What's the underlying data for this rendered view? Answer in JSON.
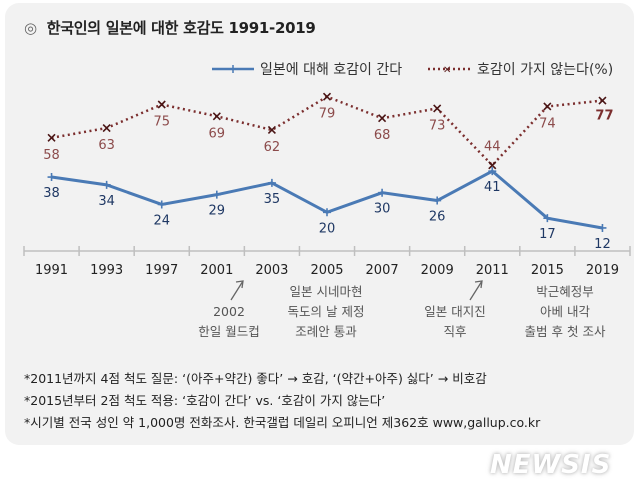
{
  "title": {
    "marker": "◎",
    "text": "한국인의 일본에 대한 호감도 1991-2019"
  },
  "chart_data": {
    "type": "line",
    "title": "한국인의 일본에 대한 호감도 1991-2019",
    "categories": [
      "1991",
      "1993",
      "1997",
      "2001",
      "2003",
      "2005",
      "2007",
      "2009",
      "2011",
      "2015",
      "2019"
    ],
    "series": [
      {
        "name": "일본에 대해 호감이 간다",
        "color": "#4a7ab5",
        "style": "solid",
        "marker": "plus",
        "values": [
          38,
          34,
          24,
          29,
          35,
          20,
          30,
          26,
          41,
          17,
          12
        ]
      },
      {
        "name": "호감이 가지 않는다(%)",
        "color": "#7b2e2e",
        "style": "dotted",
        "marker": "x",
        "values": [
          58,
          63,
          75,
          69,
          62,
          79,
          68,
          73,
          44,
          74,
          77
        ]
      }
    ],
    "xlabel": "",
    "ylabel": "",
    "ylim": [
      0,
      100
    ],
    "grid": false,
    "legend": "top-right",
    "unit": "%"
  },
  "annotations": [
    {
      "id": "a2002",
      "lines": [
        "2002",
        "한일 월드컵"
      ]
    },
    {
      "id": "a2005",
      "lines": [
        "일본 시네마현",
        "독도의 날 제정",
        "조례안 통과"
      ]
    },
    {
      "id": "a2011",
      "lines": [
        "일본 대지진",
        "직후"
      ]
    },
    {
      "id": "a2015",
      "lines": [
        "박근혜정부",
        "아베 내각",
        "출범 후 첫 조사"
      ]
    }
  ],
  "notes": [
    "*2011년까지 4점 척도 질문: ‘(아주+약간) 좋다’ → 호감, ‘(약간+아주) 싫다’ → 비호감",
    "*2015년부터 2점 척도 적용: ‘호감이 간다’ vs. ‘호감이 가지 않는다’",
    "*시기별 전국 성인 약 1,000명 전화조사. 한국갤럽 데일리 오피니언 제362호 www,gallup.co.kr"
  ],
  "watermark": "NEWSIS"
}
